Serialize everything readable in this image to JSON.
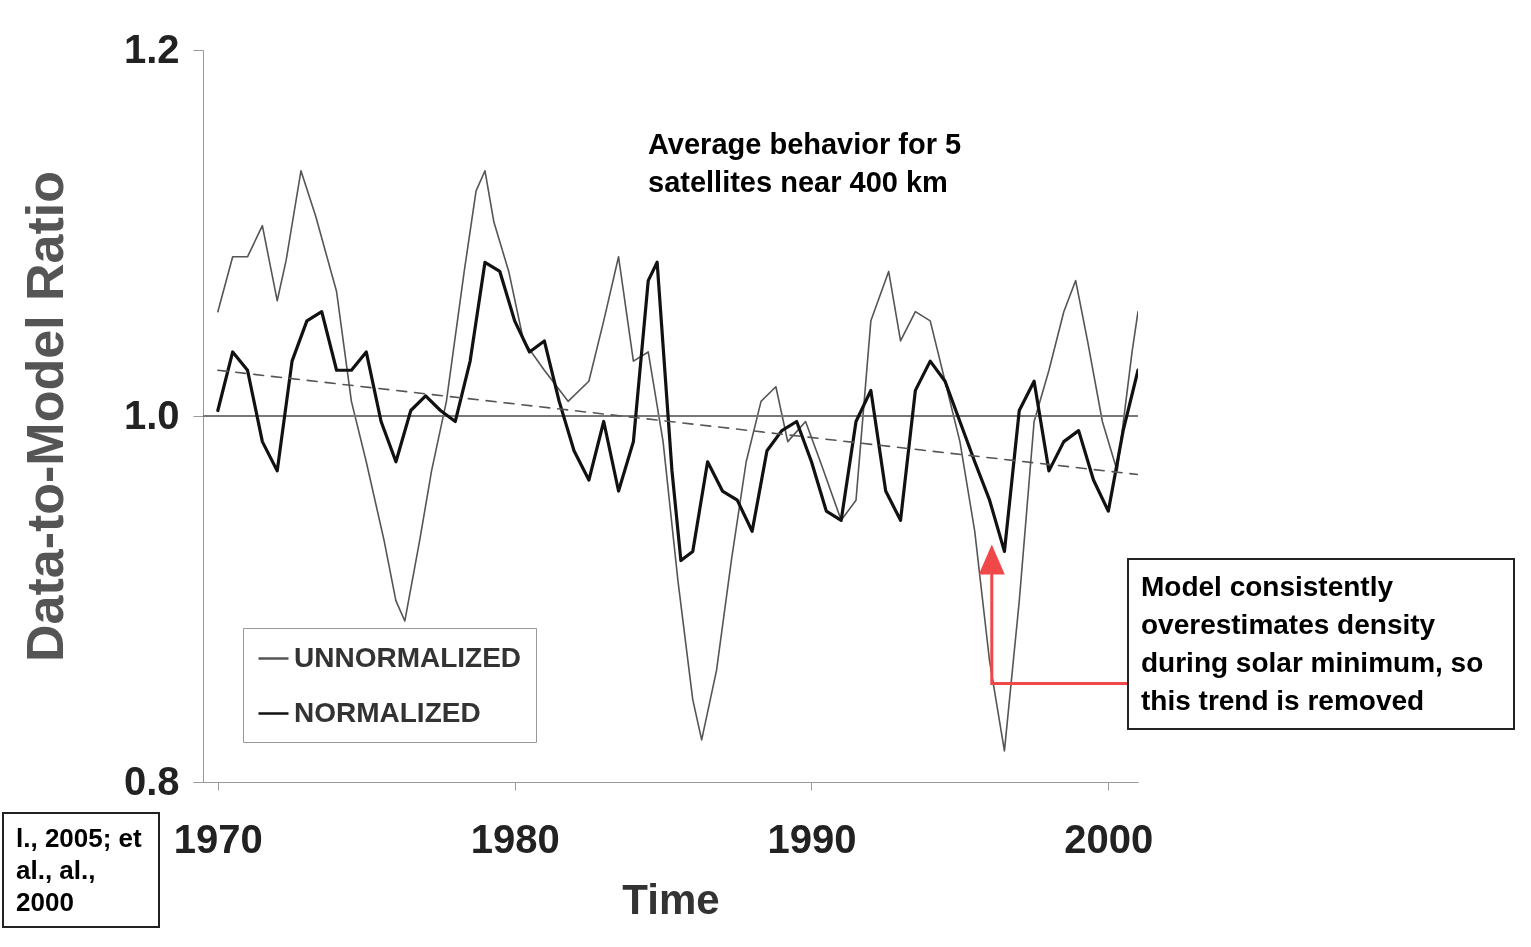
{
  "chart_data": {
    "type": "line",
    "xlabel": "Time",
    "ylabel": "Data-to-Model Ratio",
    "xlim": [
      1969.5,
      2001
    ],
    "xticks": [
      1970,
      1980,
      1990,
      2000
    ],
    "ylim": [
      0.8,
      1.2
    ],
    "yticks": [
      {
        "value": 0.8,
        "label": "0.8"
      },
      {
        "value": 1.0,
        "label": "1.0"
      },
      {
        "value": 1.2,
        "label": "1.2"
      }
    ],
    "grid": false,
    "legend": "bottom left",
    "marker": "none",
    "series": [
      {
        "name": "UNNORMALIZED",
        "color": "#555555",
        "x": [
          1970,
          1970.5,
          1971,
          1971.5,
          1972,
          1972.3,
          1972.8,
          1973.3,
          1974,
          1974.5,
          1975,
          1975.6,
          1976,
          1976.3,
          1976.8,
          1977.2,
          1977.7,
          1978.3,
          1978.7,
          1979,
          1979.3,
          1979.8,
          1980.3,
          1981,
          1981.8,
          1982.5,
          1983,
          1983.5,
          1984,
          1984.5,
          1985,
          1985.5,
          1986,
          1986.3,
          1986.8,
          1987.3,
          1987.8,
          1988.3,
          1988.8,
          1989.2,
          1989.8,
          1990.3,
          1991,
          1991.5,
          1992,
          1992.6,
          1993,
          1993.5,
          1994,
          1994.5,
          1995,
          1995.5,
          1996,
          1996.5,
          1997,
          1997.5,
          1998,
          1998.5,
          1998.9,
          1999.3,
          1999.8,
          2000.3,
          2000.8,
          2001
        ],
        "values": [
          1.057,
          1.087,
          1.087,
          1.104,
          1.063,
          1.085,
          1.134,
          1.109,
          1.068,
          1.008,
          0.975,
          0.932,
          0.899,
          0.888,
          0.932,
          0.97,
          1.008,
          1.079,
          1.123,
          1.134,
          1.106,
          1.079,
          1.041,
          1.025,
          1.008,
          1.019,
          1.052,
          1.087,
          1.03,
          1.035,
          0.986,
          0.91,
          0.845,
          0.823,
          0.861,
          0.921,
          0.975,
          1.008,
          1.016,
          0.986,
          0.997,
          0.975,
          0.943,
          0.954,
          1.052,
          1.079,
          1.041,
          1.057,
          1.052,
          1.019,
          0.986,
          0.937,
          0.866,
          0.817,
          0.899,
          0.997,
          1.025,
          1.057,
          1.074,
          1.041,
          0.997,
          0.97,
          1.035,
          1.057
        ]
      },
      {
        "name": "NORMALIZED",
        "color": "#111111",
        "x": [
          1970,
          1970.5,
          1971,
          1971.5,
          1972,
          1972.5,
          1973,
          1973.5,
          1974,
          1974.5,
          1975,
          1975.5,
          1976,
          1976.5,
          1977,
          1977.5,
          1978,
          1978.5,
          1979,
          1979.5,
          1980,
          1980.5,
          1981,
          1981.5,
          1982,
          1982.5,
          1983,
          1983.5,
          1984,
          1984.5,
          1984.8,
          1985.3,
          1985.6,
          1986,
          1986.5,
          1987,
          1987.5,
          1988,
          1988.5,
          1989,
          1989.5,
          1990,
          1990.5,
          1991,
          1991.5,
          1992,
          1992.5,
          1993,
          1993.5,
          1994,
          1994.5,
          1995,
          1995.5,
          1996,
          1996.5,
          1997,
          1997.5,
          1998,
          1998.5,
          1999,
          1999.5,
          2000,
          2000.5,
          2001
        ],
        "values": [
          1.003,
          1.035,
          1.025,
          0.986,
          0.97,
          1.03,
          1.052,
          1.057,
          1.025,
          1.025,
          1.035,
          0.997,
          0.975,
          1.003,
          1.011,
          1.003,
          0.997,
          1.03,
          1.084,
          1.079,
          1.052,
          1.035,
          1.041,
          1.008,
          0.981,
          0.965,
          0.997,
          0.959,
          0.986,
          1.074,
          1.084,
          0.97,
          0.921,
          0.926,
          0.975,
          0.959,
          0.954,
          0.937,
          0.981,
          0.992,
          0.997,
          0.975,
          0.948,
          0.943,
          0.997,
          1.014,
          0.959,
          0.943,
          1.014,
          1.03,
          1.019,
          0.997,
          0.975,
          0.954,
          0.926,
          1.003,
          1.019,
          0.97,
          0.986,
          0.992,
          0.965,
          0.948,
          0.992,
          1.025
        ]
      },
      {
        "color": "#555555",
        "line_style": "dashed",
        "x": [
          1970,
          2001
        ],
        "values": [
          1.025,
          0.968
        ]
      }
    ],
    "ref_lines": [
      {
        "axis": "y",
        "value": 1.0,
        "color": "#777777"
      }
    ],
    "annotations": [
      "Average behavior for 5 satellites near 400 km",
      "Model consistently overestimates density during solar minimum, so this trend is removed",
      "l., 2005; et al., al., 2000"
    ]
  }
}
